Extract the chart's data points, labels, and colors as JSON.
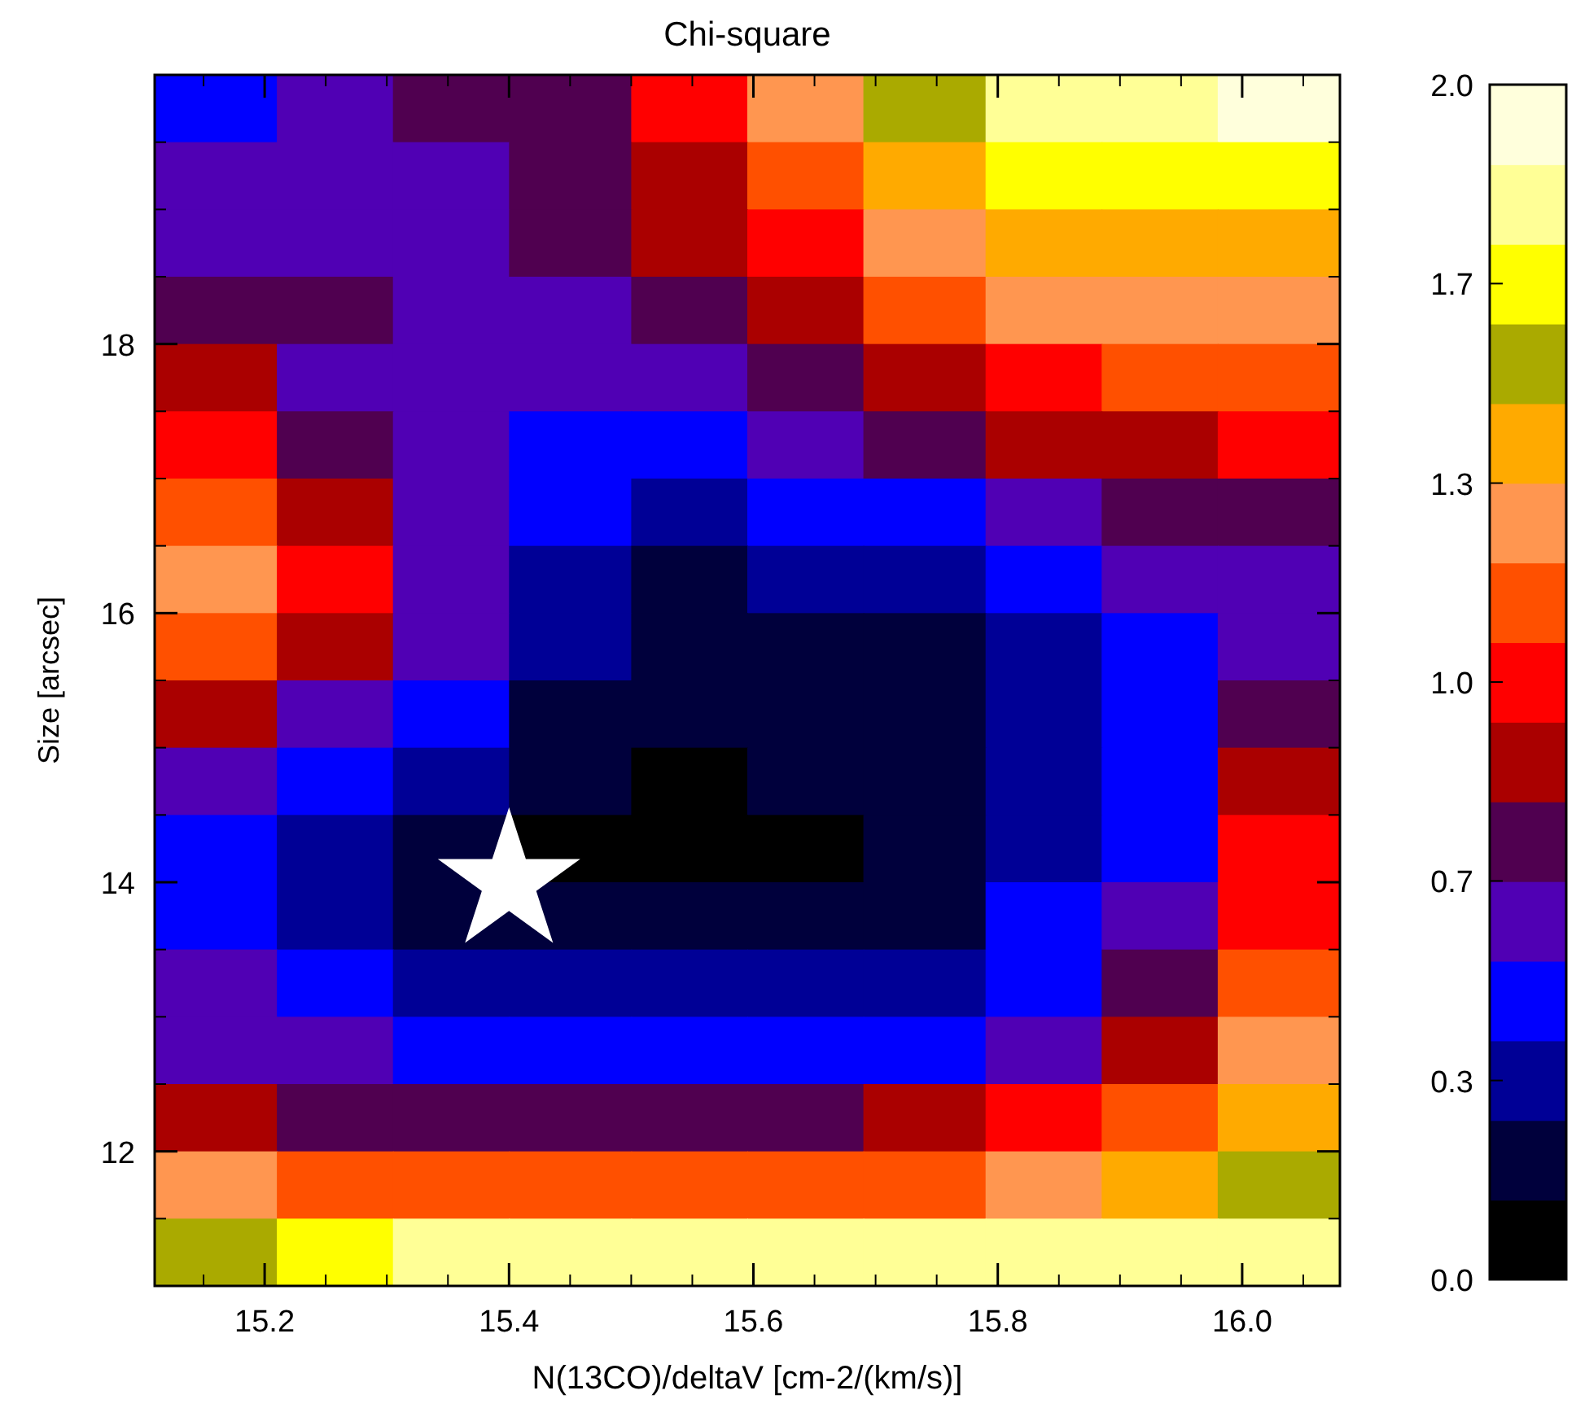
{
  "chart_data": {
    "type": "heatmap",
    "title": "Chi-square",
    "xlabel": "N(13CO)/deltaV [cm-2/(km/s)]",
    "ylabel": "Size [arcsec]",
    "x": [
      15.16,
      15.26,
      15.35,
      15.45,
      15.55,
      15.64,
      15.74,
      15.84,
      15.93,
      16.03
    ],
    "y": [
      19.75,
      19.25,
      18.75,
      18.25,
      17.75,
      17.25,
      16.75,
      16.25,
      15.75,
      15.25,
      14.75,
      14.25,
      13.75,
      13.25,
      12.75,
      12.25,
      11.75,
      11.25
    ],
    "xlim": [
      15.11,
      16.08
    ],
    "xticks": [
      {
        "value": 15.2,
        "label": "15.2"
      },
      {
        "value": 15.4,
        "label": "15.4"
      },
      {
        "value": 15.6,
        "label": "15.6"
      },
      {
        "value": 15.8,
        "label": "15.8"
      },
      {
        "value": 16.0,
        "label": "16.0"
      }
    ],
    "ylim": [
      11,
      20
    ],
    "yticks": [
      12,
      14,
      16,
      18
    ],
    "clim": [
      0,
      2
    ],
    "cticks": [
      {
        "value": 0,
        "label": "0.0"
      },
      {
        "value": 0.333,
        "label": "0.3"
      },
      {
        "value": 0.667,
        "label": "0.7"
      },
      {
        "value": 1,
        "label": "1.0"
      },
      {
        "value": 1.333,
        "label": "1.3"
      },
      {
        "value": 1.667,
        "label": "1.7"
      },
      {
        "value": 2,
        "label": "2.0"
      }
    ],
    "colors": [
      "#000000",
      "#00003c",
      "#000096",
      "#0000ff",
      "#5000b4",
      "#500050",
      "#aa0000",
      "#ff0000",
      "#ff5000",
      "#ff9650",
      "#ffaa00",
      "#aaaa00",
      "#ffff00",
      "#ffff96",
      "#ffffdc"
    ],
    "cells": [
      [
        0.47,
        0.6,
        0.73,
        0.73,
        1.0,
        1.27,
        1.53,
        1.8,
        1.8,
        1.93
      ],
      [
        0.6,
        0.6,
        0.6,
        0.73,
        0.87,
        1.13,
        1.4,
        1.67,
        1.67,
        1.67
      ],
      [
        0.6,
        0.6,
        0.6,
        0.73,
        0.87,
        1.0,
        1.27,
        1.4,
        1.4,
        1.4
      ],
      [
        0.73,
        0.73,
        0.6,
        0.6,
        0.73,
        0.87,
        1.13,
        1.27,
        1.27,
        1.27
      ],
      [
        0.87,
        0.6,
        0.6,
        0.6,
        0.6,
        0.73,
        0.87,
        1.0,
        1.13,
        1.13
      ],
      [
        1.0,
        0.73,
        0.6,
        0.47,
        0.47,
        0.6,
        0.73,
        0.87,
        0.87,
        1.0
      ],
      [
        1.13,
        0.87,
        0.6,
        0.47,
        0.33,
        0.47,
        0.47,
        0.6,
        0.73,
        0.73
      ],
      [
        1.27,
        1.0,
        0.6,
        0.33,
        0.2,
        0.33,
        0.33,
        0.47,
        0.6,
        0.6
      ],
      [
        1.13,
        0.87,
        0.6,
        0.33,
        0.2,
        0.2,
        0.2,
        0.33,
        0.47,
        0.6
      ],
      [
        0.87,
        0.6,
        0.47,
        0.2,
        0.2,
        0.2,
        0.2,
        0.33,
        0.47,
        0.73
      ],
      [
        0.6,
        0.47,
        0.33,
        0.2,
        0.07,
        0.2,
        0.2,
        0.33,
        0.47,
        0.87
      ],
      [
        0.47,
        0.33,
        0.2,
        0.07,
        0.07,
        0.07,
        0.2,
        0.33,
        0.47,
        1.0
      ],
      [
        0.47,
        0.33,
        0.2,
        0.2,
        0.2,
        0.2,
        0.2,
        0.47,
        0.6,
        1.0
      ],
      [
        0.6,
        0.47,
        0.33,
        0.33,
        0.33,
        0.33,
        0.33,
        0.47,
        0.73,
        1.13
      ],
      [
        0.6,
        0.6,
        0.47,
        0.47,
        0.47,
        0.47,
        0.47,
        0.6,
        0.87,
        1.27
      ],
      [
        0.87,
        0.73,
        0.73,
        0.73,
        0.73,
        0.73,
        0.87,
        1.0,
        1.13,
        1.4
      ],
      [
        1.27,
        1.13,
        1.13,
        1.13,
        1.13,
        1.13,
        1.13,
        1.27,
        1.4,
        1.53
      ],
      [
        1.53,
        1.67,
        1.8,
        1.8,
        1.8,
        1.8,
        1.8,
        1.8,
        1.8,
        1.8
      ]
    ],
    "series": [
      {
        "type": "scatter",
        "x": [
          15.4
        ],
        "values": [
          14.0
        ],
        "color": "#ffffff",
        "marker": "star"
      }
    ]
  }
}
